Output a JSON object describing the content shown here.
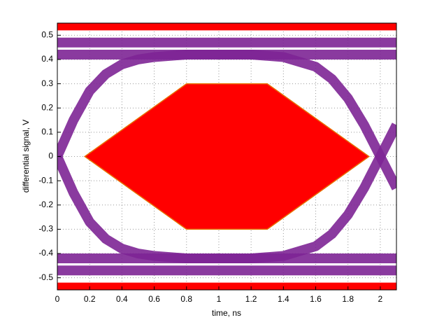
{
  "chart_data": {
    "type": "eye",
    "xlabel": "time, ns",
    "ylabel": "differential signal, V",
    "xlim": [
      0,
      2.1
    ],
    "ylim": [
      -0.55,
      0.55
    ],
    "xticks": [
      0,
      0.2,
      0.4,
      0.6,
      0.8,
      1,
      1.2,
      1.4,
      1.6,
      1.8,
      2
    ],
    "yticks": [
      -0.5,
      -0.4,
      -0.3,
      -0.2,
      -0.1,
      0,
      0.1,
      0.2,
      0.3,
      0.4,
      0.5
    ],
    "grid": true,
    "x": [
      0,
      0.1,
      0.2,
      0.3,
      0.4,
      0.5,
      0.6,
      0.8,
      1.0,
      1.2,
      1.4,
      1.6,
      1.7,
      1.8,
      1.9,
      2.0,
      2.1
    ],
    "trace_color": "#7d2595",
    "series": [
      {
        "values": [
          0.42,
          0.42,
          0.42,
          0.42,
          0.42,
          0.42,
          0.42,
          0.42,
          0.42,
          0.42,
          0.42,
          0.42,
          0.42,
          0.42,
          0.42,
          0.42,
          0.42
        ]
      },
      {
        "values": [
          0.47,
          0.47,
          0.47,
          0.47,
          0.47,
          0.47,
          0.47,
          0.47,
          0.47,
          0.47,
          0.47,
          0.47,
          0.47,
          0.47,
          0.47,
          0.47,
          0.47
        ]
      },
      {
        "values": [
          -0.42,
          -0.42,
          -0.42,
          -0.42,
          -0.42,
          -0.42,
          -0.42,
          -0.42,
          -0.42,
          -0.42,
          -0.42,
          -0.42,
          -0.42,
          -0.42,
          -0.42,
          -0.42,
          -0.42
        ]
      },
      {
        "values": [
          -0.47,
          -0.47,
          -0.47,
          -0.47,
          -0.47,
          -0.47,
          -0.47,
          -0.47,
          -0.47,
          -0.47,
          -0.47,
          -0.47,
          -0.47,
          -0.47,
          -0.47,
          -0.47,
          -0.47
        ]
      },
      {
        "values": [
          0.0,
          0.15,
          0.27,
          0.34,
          0.38,
          0.4,
          0.41,
          0.42,
          0.42,
          0.42,
          0.41,
          0.37,
          0.32,
          0.24,
          0.13,
          0.0,
          -0.13
        ]
      },
      {
        "values": [
          0.0,
          -0.15,
          -0.27,
          -0.34,
          -0.38,
          -0.4,
          -0.41,
          -0.42,
          -0.42,
          -0.42,
          -0.41,
          -0.37,
          -0.32,
          -0.24,
          -0.13,
          0.0,
          0.13
        ]
      }
    ],
    "mask_color": "#ff0000",
    "masks": [
      {
        "x": [
          0.17,
          0.8,
          1.3,
          1.93,
          1.3,
          0.8
        ],
        "y": [
          0,
          0.3,
          0.3,
          0,
          -0.3,
          -0.3
        ]
      },
      {
        "x": [
          0,
          2.1,
          2.1,
          0
        ],
        "y": [
          0.52,
          0.52,
          0.55,
          0.55
        ]
      },
      {
        "x": [
          0,
          2.1,
          2.1,
          0
        ],
        "y": [
          -0.52,
          -0.52,
          -0.55,
          -0.55
        ]
      }
    ]
  }
}
